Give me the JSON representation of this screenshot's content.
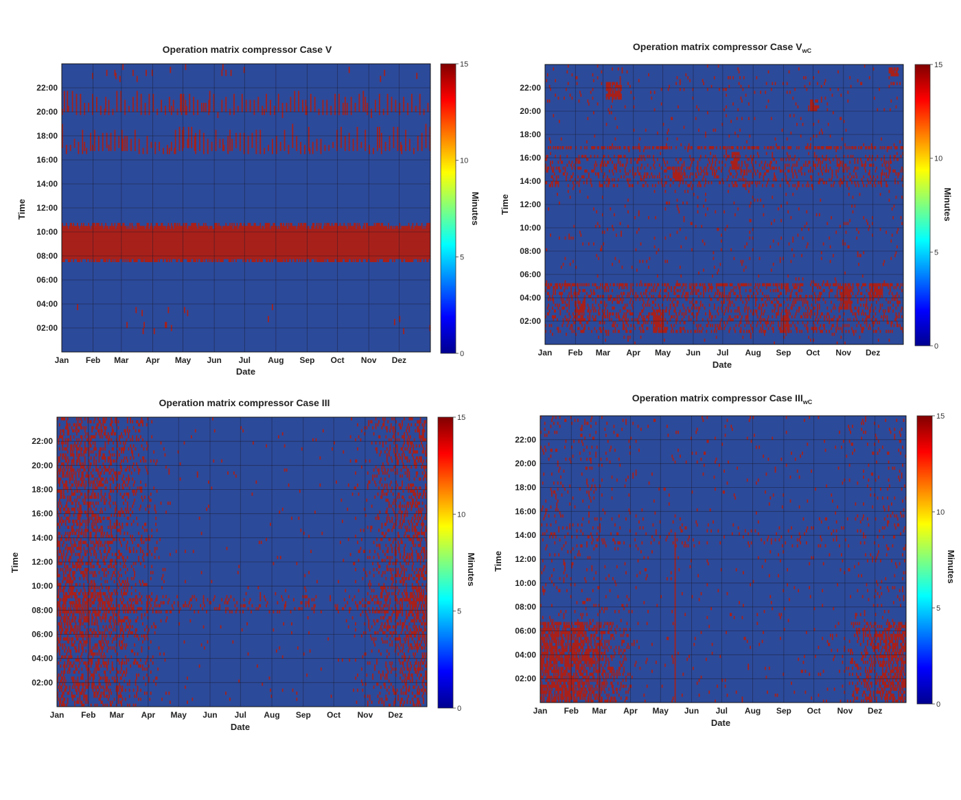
{
  "chart_data": [
    {
      "type": "heatmap",
      "title": "Operation matrix compressor Case V",
      "title_subscript": "",
      "xlabel": "Date",
      "ylabel": "Time",
      "x_tick_labels": [
        "Jan",
        "Feb",
        "Mar",
        "Apr",
        "May",
        "Jun",
        "Jul",
        "Aug",
        "Sep",
        "Oct",
        "Nov",
        "Dez"
      ],
      "y_tick_labels": [
        "02:00",
        "04:00",
        "06:00",
        "08:00",
        "10:00",
        "12:00",
        "14:00",
        "16:00",
        "18:00",
        "20:00",
        "22:00"
      ],
      "colorbar": {
        "label": "Minutes",
        "range": [
          0,
          15
        ],
        "ticks": [
          "0",
          "5",
          "10",
          "15"
        ],
        "colormap": "jet"
      },
      "pattern": "continuous 07:30-10:30 block all year; evening 16:30-18:30 and 19:45-21:15 operating bursts; sparse night runs"
    },
    {
      "type": "heatmap",
      "title": "Operation matrix compressor Case V",
      "title_subscript": "wC",
      "xlabel": "Date",
      "ylabel": "Time",
      "x_tick_labels": [
        "Jan",
        "Feb",
        "Mar",
        "Apr",
        "May",
        "Jun",
        "Jul",
        "Aug",
        "Sep",
        "Oct",
        "Nov",
        "Dez"
      ],
      "y_tick_labels": [
        "02:00",
        "04:00",
        "06:00",
        "08:00",
        "10:00",
        "12:00",
        "14:00",
        "16:00",
        "18:00",
        "20:00",
        "22:00"
      ],
      "colorbar": {
        "label": "Minutes",
        "range": [
          0,
          15
        ],
        "ticks": [
          "0",
          "5",
          "10",
          "15"
        ],
        "colormap": "jet"
      },
      "pattern": "dense bands 01:00-05:00 and 13:30-16:00, horizontal lines near 05:00 and 16:45, scattered elsewhere"
    },
    {
      "type": "heatmap",
      "title": "Operation matrix compressor Case III",
      "title_subscript": "",
      "xlabel": "Date",
      "ylabel": "Time",
      "x_tick_labels": [
        "Jan",
        "Feb",
        "Mar",
        "Apr",
        "May",
        "Jun",
        "Jul",
        "Aug",
        "Sep",
        "Oct",
        "Nov",
        "Dez"
      ],
      "y_tick_labels": [
        "02:00",
        "04:00",
        "06:00",
        "08:00",
        "10:00",
        "12:00",
        "14:00",
        "16:00",
        "18:00",
        "20:00",
        "22:00"
      ],
      "colorbar": {
        "label": "Minutes",
        "range": [
          0,
          15
        ],
        "ticks": [
          "0",
          "5",
          "10",
          "15"
        ],
        "colormap": "jet"
      },
      "pattern": "heavy winter operation (Jan-Mar, Oct-Dez) at all hours, band near 08:00 all year, sparse in summer"
    },
    {
      "type": "heatmap",
      "title": "Operation matrix compressor Case III",
      "title_subscript": "wC",
      "xlabel": "Date",
      "ylabel": "Time",
      "x_tick_labels": [
        "Jan",
        "Feb",
        "Mar",
        "Apr",
        "May",
        "Jun",
        "Jul",
        "Aug",
        "Sep",
        "Oct",
        "Nov",
        "Dez"
      ],
      "y_tick_labels": [
        "02:00",
        "04:00",
        "06:00",
        "08:00",
        "10:00",
        "12:00",
        "14:00",
        "16:00",
        "18:00",
        "20:00",
        "22:00"
      ],
      "colorbar": {
        "label": "Minutes",
        "range": [
          0,
          15
        ],
        "ticks": [
          "0",
          "5",
          "10",
          "15"
        ],
        "colormap": "jet"
      },
      "pattern": "dense night operation 00:00-06:30 in winter, scattered runs elsewhere, single vertical line in May"
    }
  ]
}
